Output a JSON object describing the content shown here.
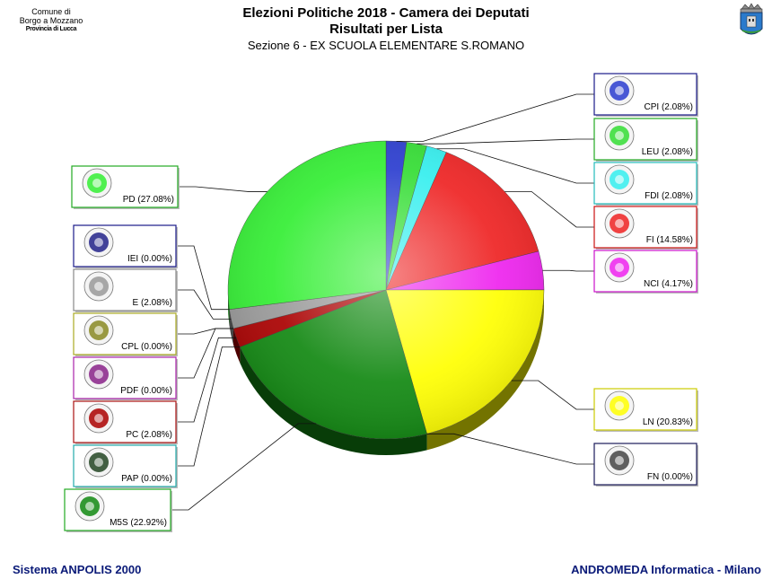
{
  "header": {
    "municipality_line1": "Comune di",
    "municipality_line2": "Borgo a Mozzano",
    "municipality_line3": "Provincia di Lucca",
    "title": "Elezioni Politiche 2018 - Camera dei Deputati",
    "subtitle": "Risultati per Lista",
    "section": "Sezione 6 - EX SCUOLA ELEMENTARE S.ROMANO"
  },
  "footer": {
    "left": "Sistema ANPOLIS 2000",
    "right": "ANDROMEDA Informatica - Milano",
    "color": "#0a1a78"
  },
  "chart_data": {
    "type": "pie",
    "title": "Risultati per Lista",
    "slices": [
      {
        "label": "CPI",
        "percent": 2.08,
        "display": "CPI (2.08%)",
        "color": "#2a3ccf",
        "side": "right",
        "border": "#1a1a8a",
        "logo_icon": "casapound-icon"
      },
      {
        "label": "LEU",
        "percent": 2.08,
        "display": "LEU (2.08%)",
        "color": "#33dd33",
        "side": "right",
        "border": "#22aa22",
        "logo_icon": "liberi-uguali-icon"
      },
      {
        "label": "FDI",
        "percent": 2.08,
        "display": "FDI (2.08%)",
        "color": "#33eeee",
        "side": "right",
        "border": "#22bbbb",
        "logo_icon": "fratelli-italia-icon"
      },
      {
        "label": "FI",
        "percent": 14.58,
        "display": "FI (14.58%)",
        "color": "#ee2222",
        "side": "right",
        "border": "#cc1111",
        "logo_icon": "forza-italia-icon"
      },
      {
        "label": "NCI",
        "percent": 4.17,
        "display": "NCI (4.17%)",
        "color": "#ee22ee",
        "side": "right",
        "border": "#cc11cc",
        "logo_icon": "noi-con-italia-icon"
      },
      {
        "label": "LN",
        "percent": 20.83,
        "display": "LN (20.83%)",
        "color": "#ffff00",
        "side": "right",
        "border": "#cccc00",
        "logo_icon": "lega-salvini-icon"
      },
      {
        "label": "FN",
        "percent": 0.0,
        "display": "FN (0.00%)",
        "color": "#444444",
        "side": "right",
        "border": "#1a1a5a",
        "logo_icon": "forza-nuova-icon"
      },
      {
        "label": "M5S",
        "percent": 22.92,
        "display": "M5S (22.92%)",
        "color": "#118811",
        "side": "left",
        "border": "#22aa22",
        "logo_icon": "movimento-5-stelle-icon"
      },
      {
        "label": "PAP",
        "percent": 0.0,
        "display": "PAP (0.00%)",
        "color": "#224422",
        "side": "left",
        "border": "#22aaaa",
        "logo_icon": "potere-al-popolo-icon"
      },
      {
        "label": "PC",
        "percent": 2.08,
        "display": "PC (2.08%)",
        "color": "#aa0000",
        "side": "left",
        "border": "#aa1111",
        "logo_icon": "partito-comunista-icon"
      },
      {
        "label": "PDF",
        "percent": 0.0,
        "display": "PDF (0.00%)",
        "color": "#882288",
        "side": "left",
        "border": "#aa22aa",
        "logo_icon": "popolo-famiglia-icon"
      },
      {
        "label": "CPL",
        "percent": 0.0,
        "display": "CPL (0.00%)",
        "color": "#888822",
        "side": "left",
        "border": "#aaaa22",
        "logo_icon": "civica-popolare-icon"
      },
      {
        "label": "E",
        "percent": 2.08,
        "display": "E (2.08%)",
        "color": "#999999",
        "side": "left",
        "border": "#888888",
        "logo_icon": "piu-europa-icon"
      },
      {
        "label": "IEI",
        "percent": 0.0,
        "display": "IEI (0.00%)",
        "color": "#222288",
        "side": "left",
        "border": "#1a1a8a",
        "logo_icon": "insieme-icon"
      },
      {
        "label": "PD",
        "percent": 27.08,
        "display": "PD (27.08%)",
        "color": "#33ee33",
        "side": "left",
        "border": "#22aa22",
        "logo_icon": "partito-democratico-icon"
      }
    ],
    "legend_placement": "callouts-left-right"
  }
}
